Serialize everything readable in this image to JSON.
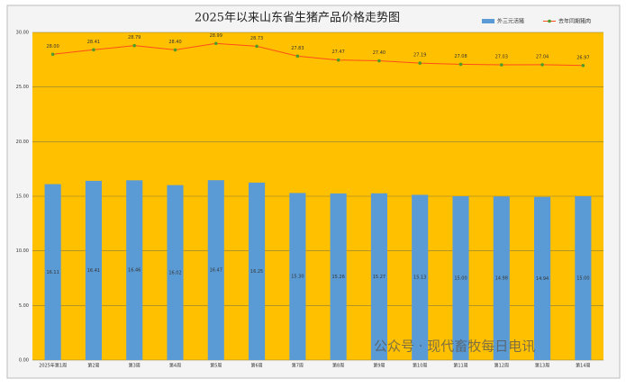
{
  "chart_data": {
    "type": "bar-line",
    "title": "2025年以来山东省生猪产品价格走势图",
    "categories": [
      "2025年第1周",
      "第2周",
      "第3周",
      "第4周",
      "第5周",
      "第6周",
      "第7周",
      "第8周",
      "第9周",
      "第10周",
      "第11周",
      "第12周",
      "第13周",
      "第14周"
    ],
    "series": [
      {
        "name": "外三元活猪",
        "type": "bar",
        "color": "#5b9bd5",
        "values": [
          16.11,
          16.41,
          16.46,
          16.02,
          16.47,
          16.25,
          15.3,
          15.26,
          15.27,
          15.13,
          15.0,
          14.98,
          14.94,
          15.0
        ],
        "value_labels": [
          "16.11",
          "16.41",
          "16.46",
          "16.02",
          "16.47",
          "16.25",
          "15.30",
          "15.26",
          "15.27",
          "15.13",
          "15.00",
          "14.98",
          "14.94",
          "15.00"
        ]
      },
      {
        "name": "去年同期猪肉",
        "type": "line",
        "color": "#ff4e1a",
        "marker_color": "#4e9a2a",
        "values": [
          28.0,
          28.41,
          28.79,
          28.4,
          28.99,
          28.73,
          27.83,
          27.47,
          27.4,
          27.19,
          27.08,
          27.03,
          27.04,
          26.97
        ],
        "value_labels": [
          "28.00",
          "28.41",
          "28.79",
          "28.40",
          "28.99",
          "28.73",
          "27.83",
          "27.47",
          "27.40",
          "27.19",
          "27.08",
          "27.03",
          "27.04",
          "26.97"
        ]
      }
    ],
    "ylim": [
      0,
      30
    ],
    "yticks": [
      {
        "value": 0,
        "label": "0.00"
      },
      {
        "value": 5,
        "label": "5.00"
      },
      {
        "value": 10,
        "label": "10.00"
      },
      {
        "value": 15,
        "label": "15.00"
      },
      {
        "value": 20,
        "label": "20.00"
      },
      {
        "value": 25,
        "label": "25.00"
      },
      {
        "value": 30,
        "label": "30.00"
      }
    ],
    "grid": true,
    "legend": "top-right",
    "plot_background": "#ffc000",
    "watermark": "公众号 · 现代畜牧每日电讯"
  }
}
